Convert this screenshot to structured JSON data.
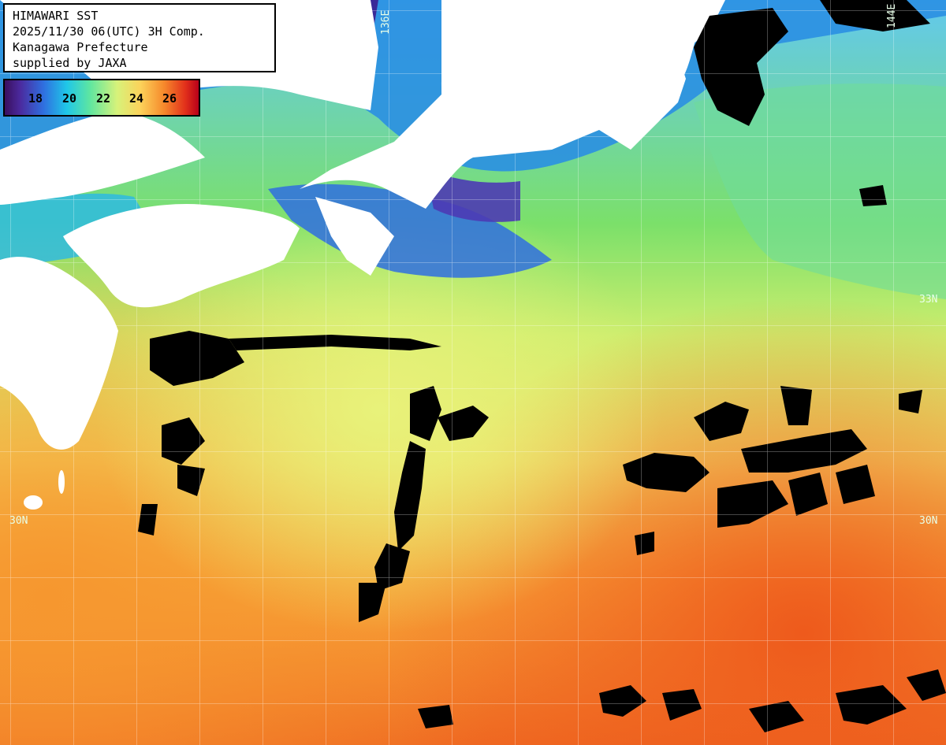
{
  "header": {
    "line1": "HIMAWARI SST",
    "line2": "2025/11/30 06(UTC) 3H Comp.",
    "line3": "Kanagawa Prefecture",
    "line4": "supplied by JAXA"
  },
  "legend": {
    "ticks": [
      "18",
      "20",
      "22",
      "24",
      "26"
    ]
  },
  "axes": {
    "lon": [
      "136E",
      "144E"
    ],
    "lat": [
      "33N",
      "30N"
    ]
  },
  "colors": {
    "cold": "#3a0f5e",
    "cool": "#2f6fe0",
    "mid": "#5fe6a0",
    "warm": "#d7f27a",
    "hot": "#f68a2c",
    "hottest": "#e2311b",
    "land": "#ffffff",
    "cloud": "#000000"
  }
}
